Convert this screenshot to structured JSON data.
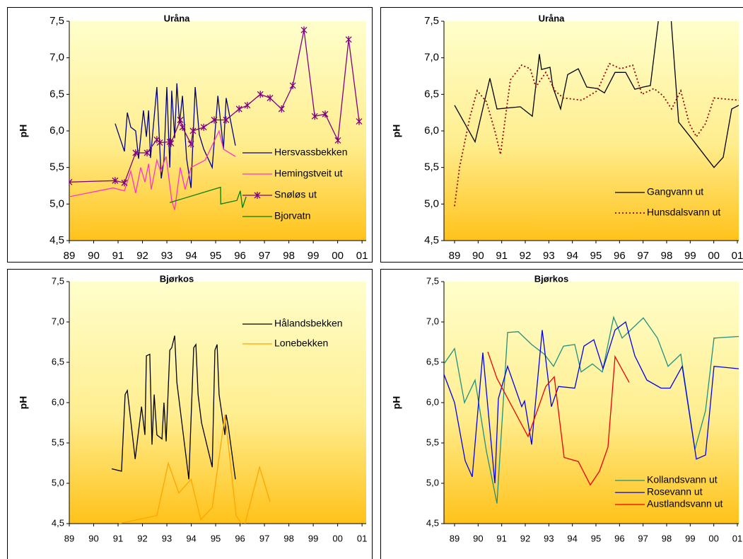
{
  "chart_data": [
    {
      "type": "line",
      "title": "Uråna",
      "y_label": "pH",
      "legend": "right",
      "xlim": [
        1989,
        2001.17
      ],
      "ylim": [
        4.5,
        7.5
      ],
      "xticks": [
        {
          "value": 1989,
          "label": "89"
        },
        {
          "value": 1990,
          "label": "90"
        },
        {
          "value": 1991,
          "label": "91"
        },
        {
          "value": 1992,
          "label": "92"
        },
        {
          "value": 1993,
          "label": "93"
        },
        {
          "value": 1994,
          "label": "94"
        },
        {
          "value": 1995,
          "label": "95"
        },
        {
          "value": 1996,
          "label": "96"
        },
        {
          "value": 1997,
          "label": "97"
        },
        {
          "value": 1998,
          "label": "98"
        },
        {
          "value": 1999,
          "label": "99"
        },
        {
          "value": 2000,
          "label": "00"
        },
        {
          "value": 2001,
          "label": "01"
        }
      ],
      "yticks": [
        {
          "value": 4.5,
          "label": "4,5"
        },
        {
          "value": 5,
          "label": "5,0"
        },
        {
          "value": 5.5,
          "label": "5,5"
        },
        {
          "value": 6,
          "label": "6,0"
        },
        {
          "value": 6.5,
          "label": "6,5"
        },
        {
          "value": 7,
          "label": "7,0"
        },
        {
          "value": 7.5,
          "label": "7,5"
        }
      ],
      "series": [
        {
          "name": "Hersvassbekken",
          "color": "#000080",
          "x": [
            1990.88,
            1991.26,
            1991.38,
            1991.52,
            1991.72,
            1991.84,
            1992.04,
            1992.16,
            1992.25,
            1992.33,
            1992.59,
            1992.77,
            1992.88,
            1993.0,
            1993.12,
            1993.2,
            1993.32,
            1993.41,
            1993.52,
            1993.64,
            1993.81,
            1993.99,
            1994.16,
            1994.33,
            1994.51,
            1994.86,
            1995.09,
            1995.32,
            1995.43,
            1995.81
          ],
          "values": [
            6.1,
            5.72,
            6.25,
            6.05,
            6.0,
            5.62,
            6.28,
            5.92,
            6.28,
            5.63,
            6.6,
            5.35,
            5.6,
            6.6,
            5.5,
            6.55,
            5.9,
            6.65,
            6.1,
            6.48,
            5.62,
            5.22,
            6.6,
            5.95,
            5.75,
            5.5,
            6.48,
            5.75,
            6.45,
            5.8
          ]
        },
        {
          "name": "Hemingstveit ut",
          "color": "#ff33cc",
          "x": [
            1989.0,
            1990.8,
            1991.26,
            1991.52,
            1991.72,
            1991.93,
            1992.1,
            1992.25,
            1992.36,
            1992.59,
            1992.74,
            1992.97,
            1993.2,
            1993.32,
            1993.55,
            1993.75,
            1993.99,
            1994.57,
            1995.14,
            1995.32,
            1995.81
          ],
          "values": [
            5.1,
            5.22,
            5.18,
            5.45,
            5.15,
            5.5,
            5.3,
            5.55,
            5.2,
            5.6,
            5.45,
            5.65,
            5.05,
            4.92,
            5.5,
            5.2,
            5.5,
            5.6,
            6.0,
            5.75,
            5.65
          ]
        },
        {
          "name": "Snøløs ut",
          "color": "#800080",
          "marker": "star",
          "x": [
            1989.0,
            1990.88,
            1991.26,
            1991.72,
            1992.19,
            1992.59,
            1992.71,
            1993.12,
            1993.17,
            1993.55,
            1993.64,
            1993.99,
            1994.07,
            1994.51,
            1994.94,
            1995.43,
            1995.96,
            1996.3,
            1996.83,
            1997.23,
            1997.7,
            1998.16,
            1998.62,
            1999.06,
            1999.49,
            2000.01,
            2000.45,
            2000.88
          ],
          "values": [
            5.3,
            5.32,
            5.29,
            5.7,
            5.7,
            5.88,
            5.84,
            5.85,
            5.83,
            6.15,
            6.05,
            5.82,
            6.0,
            6.05,
            6.15,
            6.15,
            6.3,
            6.35,
            6.5,
            6.45,
            6.3,
            6.62,
            7.38,
            6.2,
            6.23,
            5.87,
            7.25,
            6.13
          ]
        },
        {
          "name": "Bjorvatn",
          "color": "#008000",
          "x": [
            1993.12,
            1995.2,
            1995.21,
            1995.87,
            1996.01,
            1996.1,
            1996.25
          ],
          "values": [
            5.02,
            5.23,
            5.0,
            5.05,
            5.18,
            4.95,
            5.1
          ]
        }
      ]
    },
    {
      "type": "line",
      "title": "Uråna",
      "y_label": "pH",
      "legend": "lower right",
      "xlim": [
        1988.55,
        2001.06
      ],
      "ylim": [
        4.5,
        7.5
      ],
      "xticks": [
        {
          "value": 1989,
          "label": "89"
        },
        {
          "value": 1990,
          "label": "90"
        },
        {
          "value": 1991,
          "label": "91"
        },
        {
          "value": 1992,
          "label": "92"
        },
        {
          "value": 1993,
          "label": "93"
        },
        {
          "value": 1994,
          "label": "94"
        },
        {
          "value": 1995,
          "label": "95"
        },
        {
          "value": 1996,
          "label": "96"
        },
        {
          "value": 1997,
          "label": "97"
        },
        {
          "value": 1998,
          "label": "98"
        },
        {
          "value": 1999,
          "label": "99"
        },
        {
          "value": 2000,
          "label": "00"
        },
        {
          "value": 2001,
          "label": "01"
        }
      ],
      "yticks": [
        {
          "value": 4.5,
          "label": "4,5"
        },
        {
          "value": 5,
          "label": "5,0"
        },
        {
          "value": 5.5,
          "label": "5,5"
        },
        {
          "value": 6,
          "label": "6,0"
        },
        {
          "value": 6.5,
          "label": "6,5"
        },
        {
          "value": 7,
          "label": "7,0"
        },
        {
          "value": 7.5,
          "label": "7,5"
        }
      ],
      "series": [
        {
          "name": "Gangvann ut",
          "color": "#000000",
          "x": [
            1989.0,
            1989.87,
            1990.5,
            1990.8,
            1991.79,
            1992.3,
            1992.6,
            1992.69,
            1993.05,
            1993.17,
            1993.5,
            1993.8,
            1994.25,
            1994.61,
            1995.06,
            1995.36,
            1995.81,
            1996.26,
            1996.65,
            1997.01,
            1997.31,
            1997.76,
            1998.15,
            1998.51,
            1999.05,
            2000.01,
            2000.4,
            2000.76,
            2001.06
          ],
          "values": [
            6.35,
            5.85,
            6.72,
            6.3,
            6.33,
            6.2,
            7.05,
            6.84,
            6.87,
            6.6,
            6.3,
            6.77,
            6.85,
            6.6,
            6.58,
            6.52,
            6.8,
            6.8,
            6.57,
            6.6,
            6.62,
            7.8,
            7.7,
            6.12,
            5.9,
            5.5,
            5.64,
            6.3,
            6.35
          ]
        },
        {
          "name": "Hunsdalsvann ut",
          "color": "#990000",
          "dash": "dotted",
          "x": [
            1989.0,
            1989.21,
            1989.66,
            1989.96,
            1990.35,
            1990.71,
            1990.95,
            1991.37,
            1991.85,
            1992.21,
            1992.45,
            1992.87,
            1993.26,
            1993.62,
            1994.4,
            1995.06,
            1995.57,
            1996.05,
            1996.56,
            1996.95,
            1997.46,
            1997.85,
            1998.21,
            1998.6,
            1998.96,
            1999.26,
            1999.65,
            2000.01,
            2001.06
          ],
          "values": [
            4.97,
            5.5,
            6.2,
            6.55,
            6.4,
            6.0,
            5.68,
            6.7,
            6.9,
            6.85,
            6.6,
            6.8,
            6.55,
            6.45,
            6.42,
            6.55,
            6.92,
            6.85,
            6.9,
            6.5,
            6.58,
            6.48,
            6.3,
            6.55,
            6.1,
            5.92,
            6.1,
            6.45,
            6.42
          ]
        }
      ]
    },
    {
      "type": "line",
      "title": "Bjørkos",
      "y_label": "pH",
      "legend": "upper right",
      "xlim": [
        1989,
        2001.17
      ],
      "ylim": [
        4.5,
        7.5
      ],
      "xticks": [
        {
          "value": 1989,
          "label": "89"
        },
        {
          "value": 1990,
          "label": "90"
        },
        {
          "value": 1991,
          "label": "91"
        },
        {
          "value": 1992,
          "label": "92"
        },
        {
          "value": 1993,
          "label": "93"
        },
        {
          "value": 1994,
          "label": "94"
        },
        {
          "value": 1995,
          "label": "95"
        },
        {
          "value": 1996,
          "label": "96"
        },
        {
          "value": 1997,
          "label": "97"
        },
        {
          "value": 1998,
          "label": "98"
        },
        {
          "value": 1999,
          "label": "99"
        },
        {
          "value": 2000,
          "label": "00"
        },
        {
          "value": 2001,
          "label": "01"
        }
      ],
      "yticks": [
        {
          "value": 4.5,
          "label": "4,5"
        },
        {
          "value": 5,
          "label": "5,0"
        },
        {
          "value": 5.5,
          "label": "5,5"
        },
        {
          "value": 6,
          "label": "6,0"
        },
        {
          "value": 6.5,
          "label": "6,5"
        },
        {
          "value": 7,
          "label": "7,0"
        },
        {
          "value": 7.5,
          "label": "7,5"
        }
      ],
      "series": [
        {
          "name": "Hålandsbekken",
          "color": "#000000",
          "x": [
            1990.74,
            1991.14,
            1991.29,
            1991.38,
            1991.7,
            1991.96,
            1992.1,
            1992.16,
            1992.3,
            1992.39,
            1992.48,
            1992.59,
            1992.8,
            1992.88,
            1992.97,
            1993.12,
            1993.2,
            1993.32,
            1993.41,
            1993.9,
            1994.1,
            1994.19,
            1994.28,
            1994.42,
            1994.86,
            1994.97,
            1995.06,
            1995.14,
            1995.38,
            1995.43,
            1995.52,
            1995.81
          ],
          "values": [
            5.18,
            5.15,
            6.1,
            6.15,
            5.3,
            5.95,
            5.6,
            6.58,
            6.6,
            5.48,
            6.1,
            5.6,
            5.55,
            6.0,
            5.52,
            6.65,
            6.68,
            6.83,
            6.25,
            5.05,
            6.68,
            6.72,
            6.1,
            5.75,
            5.2,
            6.65,
            6.72,
            6.1,
            5.6,
            5.85,
            5.7,
            5.05
          ]
        },
        {
          "name": "Lonebekken",
          "color": "#ffa500",
          "x": [
            1991.03,
            1992.59,
            1993.06,
            1993.49,
            1993.99,
            1994.39,
            1994.86,
            1995.38,
            1995.84,
            1996.16,
            1996.8,
            1997.23
          ],
          "values": [
            4.5,
            4.6,
            5.25,
            4.88,
            5.05,
            4.55,
            4.7,
            5.85,
            4.6,
            4.45,
            5.2,
            4.77
          ]
        }
      ]
    },
    {
      "type": "line",
      "title": "Bjørkos",
      "y_label": "pH",
      "legend": "lower right",
      "xlim": [
        1988.55,
        2001.06
      ],
      "ylim": [
        4.5,
        7.5
      ],
      "xticks": [
        {
          "value": 1989,
          "label": "89"
        },
        {
          "value": 1990,
          "label": "90"
        },
        {
          "value": 1991,
          "label": "91"
        },
        {
          "value": 1992,
          "label": "92"
        },
        {
          "value": 1993,
          "label": "93"
        },
        {
          "value": 1994,
          "label": "94"
        },
        {
          "value": 1995,
          "label": "95"
        },
        {
          "value": 1996,
          "label": "96"
        },
        {
          "value": 1997,
          "label": "97"
        },
        {
          "value": 1998,
          "label": "98"
        },
        {
          "value": 1999,
          "label": "99"
        },
        {
          "value": 2000,
          "label": "00"
        },
        {
          "value": 2001,
          "label": "01"
        }
      ],
      "yticks": [
        {
          "value": 4.5,
          "label": "4,5"
        },
        {
          "value": 5,
          "label": "5,0"
        },
        {
          "value": 5.5,
          "label": "5,5"
        },
        {
          "value": 6,
          "label": "6,0"
        },
        {
          "value": 6.5,
          "label": "6,5"
        },
        {
          "value": 7,
          "label": "7,0"
        },
        {
          "value": 7.5,
          "label": "7,5"
        }
      ],
      "series": [
        {
          "name": "Kollandsvann ut",
          "color": "#1f9080",
          "x": [
            1988.55,
            1989.0,
            1989.42,
            1989.87,
            1990.35,
            1990.8,
            1991.25,
            1991.7,
            1992.27,
            1992.81,
            1993.2,
            1993.62,
            1994.1,
            1994.37,
            1994.85,
            1995.27,
            1995.75,
            1996.11,
            1997.01,
            1997.61,
            1998.06,
            1998.6,
            1999.2,
            1999.65,
            2000.01,
            2001.06
          ],
          "values": [
            6.48,
            6.67,
            6.0,
            6.28,
            5.4,
            4.75,
            6.87,
            6.88,
            6.72,
            6.6,
            6.45,
            6.7,
            6.72,
            6.38,
            6.48,
            6.38,
            7.06,
            6.8,
            7.05,
            6.8,
            6.45,
            6.6,
            5.42,
            5.9,
            6.8,
            6.82
          ]
        },
        {
          "name": "Rosevann ut",
          "color": "#0000ee",
          "x": [
            1988.55,
            1989.0,
            1989.45,
            1989.75,
            1990.2,
            1990.71,
            1990.86,
            1991.25,
            1991.85,
            1991.97,
            1992.27,
            1992.72,
            1993.11,
            1993.41,
            1994.1,
            1994.49,
            1994.91,
            1995.3,
            1995.81,
            1996.26,
            1996.65,
            1997.16,
            1997.76,
            1998.15,
            1998.66,
            1999.26,
            1999.65,
            2000.01,
            2001.06
          ],
          "values": [
            6.35,
            6.0,
            5.28,
            5.08,
            6.62,
            5.0,
            6.05,
            6.45,
            5.95,
            6.02,
            5.48,
            6.9,
            5.95,
            6.2,
            6.18,
            6.7,
            6.78,
            6.42,
            6.9,
            7.0,
            6.58,
            6.28,
            6.18,
            6.18,
            6.45,
            5.3,
            5.35,
            6.45,
            6.42
          ]
        },
        {
          "name": "Austlandsvann ut",
          "color": "#ee0000",
          "x": [
            1990.41,
            1990.8,
            1992.12,
            1992.87,
            1993.23,
            1993.65,
            1994.25,
            1994.76,
            1995.15,
            1995.51,
            1995.81,
            1996.41
          ],
          "values": [
            6.63,
            6.3,
            5.58,
            6.2,
            6.32,
            5.32,
            5.27,
            4.98,
            5.15,
            5.45,
            6.57,
            6.25
          ]
        }
      ]
    }
  ]
}
